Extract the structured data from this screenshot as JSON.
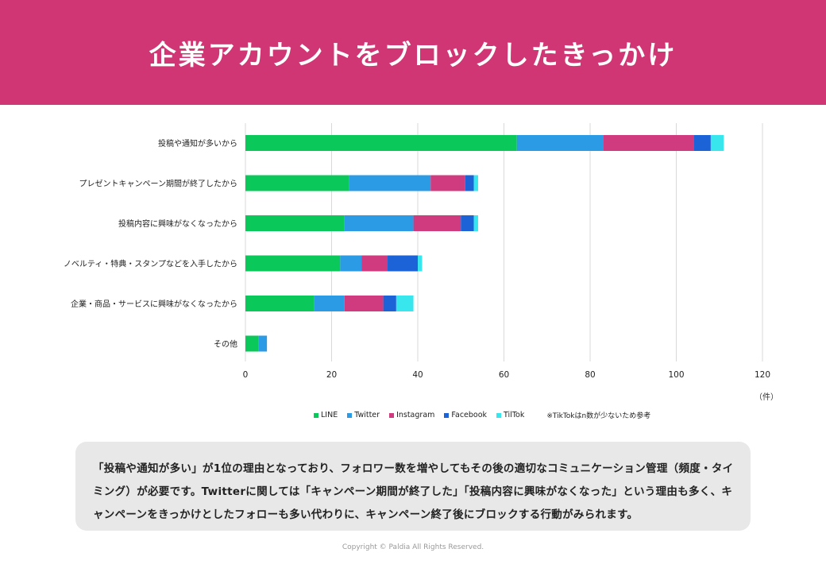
{
  "header": {
    "title": "企業アカウントをブロックしたきっかけ"
  },
  "chart_data": {
    "type": "bar",
    "orientation": "horizontal",
    "stacked": true,
    "categories": [
      "投稿や通知が多いから",
      "プレゼントキャンペーン期間が終了したから",
      "投稿内容に興味がなくなったから",
      "ノベルティ・特典・スタンプなどを入手したから",
      "企業・商品・サービスに興味がなくなったから",
      "その他"
    ],
    "series": [
      {
        "name": "LINE",
        "color": "#0ac85a",
        "values": [
          63,
          24,
          23,
          22,
          16,
          3
        ]
      },
      {
        "name": "Twitter",
        "color": "#2b9be6",
        "values": [
          20,
          19,
          16,
          5,
          7,
          2
        ]
      },
      {
        "name": "Instagram",
        "color": "#d03a7e",
        "values": [
          21,
          8,
          11,
          6,
          9,
          0
        ]
      },
      {
        "name": "Facebook",
        "color": "#1c63d8",
        "values": [
          4,
          2,
          3,
          7,
          3,
          0
        ]
      },
      {
        "name": "TilTok",
        "color": "#38e6ee",
        "values": [
          3,
          1,
          1,
          1,
          4,
          0
        ]
      }
    ],
    "xlim": [
      0,
      120
    ],
    "xticks": [
      0,
      20,
      40,
      60,
      80,
      100,
      120
    ],
    "unit_label": "（件）",
    "legend_note": "※TikTokはn数が少ないため参考",
    "legend_position": "bottom",
    "grid": true
  },
  "summary": {
    "text": "「投稿や通知が多い」が1位の理由となっており、フォロワー数を増やしてもその後の適切なコミュニケーション管理（頻度・タイミング）が必要です。Twitterに関しては「キャンペーン期間が終了した」「投稿内容に興味がなくなった」という理由も多く、キャンペーンをきっかけとしたフォローも多い代わりに、キャンペーン終了後にブロックする行動がみられます。"
  },
  "footer": {
    "copyright": "Copyright © Paldia All Rights Reserved."
  }
}
